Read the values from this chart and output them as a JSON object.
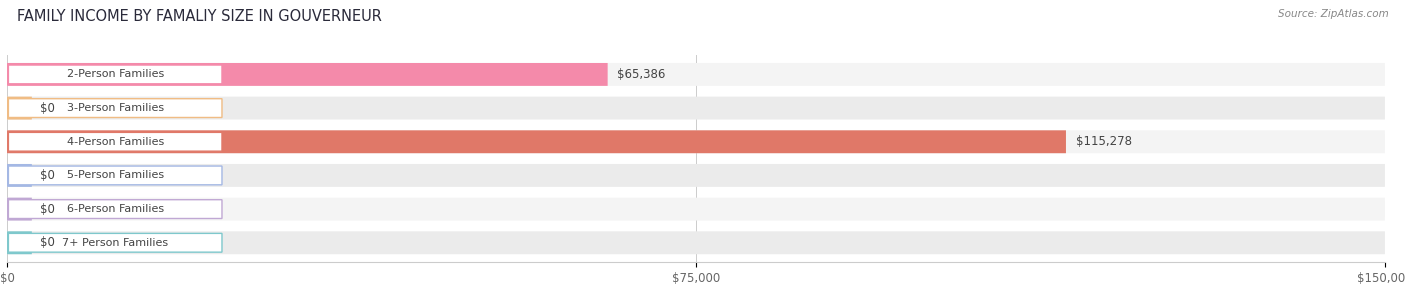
{
  "title": "FAMILY INCOME BY FAMALIY SIZE IN GOUVERNEUR",
  "source": "Source: ZipAtlas.com",
  "categories": [
    "2-Person Families",
    "3-Person Families",
    "4-Person Families",
    "5-Person Families",
    "6-Person Families",
    "7+ Person Families"
  ],
  "values": [
    65386,
    0,
    115278,
    0,
    0,
    0
  ],
  "bar_colors": [
    "#f48aaa",
    "#f0bc84",
    "#e07868",
    "#a4b8e4",
    "#c0a8d4",
    "#7ec8cc"
  ],
  "xmax": 150000,
  "xtick_labels": [
    "$0",
    "$75,000",
    "$150,000"
  ],
  "value_labels": [
    "$65,386",
    "$0",
    "$115,278",
    "$0",
    "$0",
    "$0"
  ],
  "title_fontsize": 10.5,
  "value_fontsize": 8.5,
  "cat_fontsize": 8.0,
  "source_fontsize": 7.5,
  "background_color": "#ffffff",
  "row_colors": [
    "#f4f4f4",
    "#ebebeb"
  ],
  "track_color": "#f0f0f0"
}
